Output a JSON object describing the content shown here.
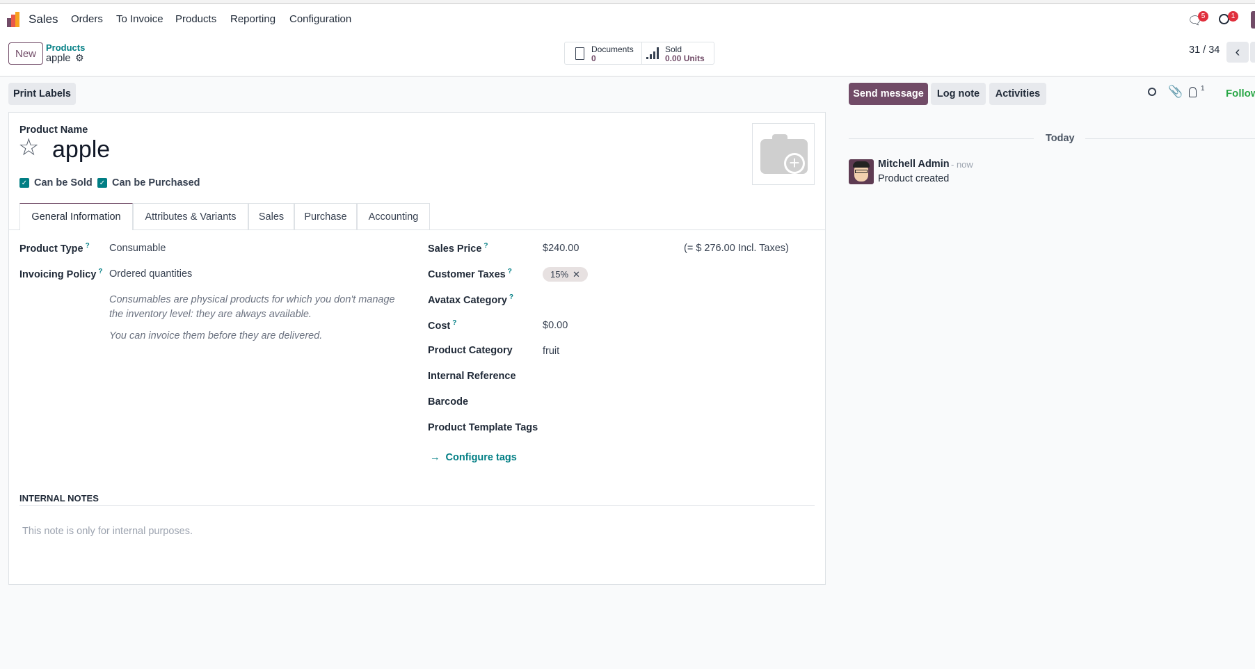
{
  "navbar": {
    "app": "Sales",
    "menu": [
      "Orders",
      "To Invoice",
      "Products",
      "Reporting",
      "Configuration"
    ],
    "messages_count": "5",
    "activities_count": "1"
  },
  "control": {
    "new": "New",
    "breadcrumb": "Products",
    "record": "apple",
    "documents_label": "Documents",
    "documents_count": "0",
    "sold_label": "Sold",
    "sold_value": "0.00 Units",
    "pager": "31 / 34"
  },
  "actions": {
    "print_labels": "Print Labels"
  },
  "chatter": {
    "send": "Send message",
    "log": "Log note",
    "activities": "Activities",
    "followers_count": "1",
    "follow": "Follow",
    "date_sep": "Today",
    "author": "Mitchell Admin",
    "time": "- now",
    "body": "Product created"
  },
  "form": {
    "name_label": "Product Name",
    "name": "apple",
    "can_be_sold": "Can be Sold",
    "can_be_purchased": "Can be Purchased",
    "tabs": [
      "General Information",
      "Attributes & Variants",
      "Sales",
      "Purchase",
      "Accounting"
    ],
    "left": {
      "product_type_label": "Product Type",
      "product_type": "Consumable",
      "invoicing_label": "Invoicing Policy",
      "invoicing": "Ordered quantities",
      "help1": "Consumables are physical products for which you don't manage the inventory level: they are always available.",
      "help2": "You can invoice them before they are delivered."
    },
    "right": {
      "sales_price_label": "Sales Price",
      "sales_price": "$240.00",
      "incl_taxes": "(= $ 276.00 Incl. Taxes)",
      "taxes_label": "Customer Taxes",
      "tax_tag": "15%",
      "avatax_label": "Avatax Category",
      "cost_label": "Cost",
      "cost": "$0.00",
      "category_label": "Product Category",
      "category": "fruit",
      "internal_ref_label": "Internal Reference",
      "barcode_label": "Barcode",
      "tags_label": "Product Template Tags",
      "configure_tags": "Configure tags"
    },
    "notes_title": "INTERNAL NOTES",
    "notes_placeholder": "This note is only for internal purposes."
  },
  "colors": {
    "primary": "#714b67",
    "link": "#017e84",
    "follow": "#28a745"
  }
}
